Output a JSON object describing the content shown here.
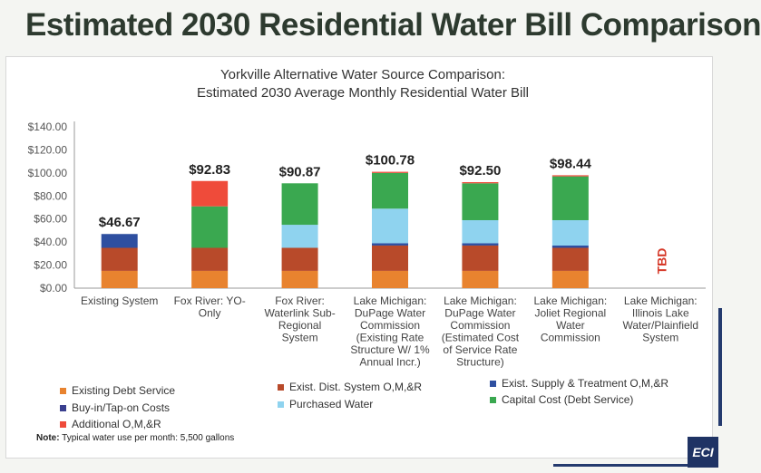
{
  "slide": {
    "title": "Estimated 2030 Residential Water Bill Comparison"
  },
  "chart_data": {
    "type": "bar",
    "stacked": true,
    "title_line1": "Yorkville Alternative Water Source Comparison:",
    "title_line2": "Estimated 2030 Average Monthly Residential Water Bill",
    "ylim": [
      0,
      140
    ],
    "y_ticks": [
      "$0.00",
      "$20.00",
      "$40.00",
      "$60.00",
      "$80.00",
      "$100.00",
      "$120.00",
      "$140.00"
    ],
    "categories": [
      [
        "Existing System"
      ],
      [
        "Fox River: YO-",
        "Only"
      ],
      [
        "Fox River:",
        "Waterlink Sub-",
        "Regional",
        "System"
      ],
      [
        "Lake Michigan:",
        "DuPage Water",
        "Commission",
        "(Existing Rate",
        "Structure W/ 1%",
        "Annual Incr.)"
      ],
      [
        "Lake Michigan:",
        "DuPage Water",
        "Commission",
        "(Estimated Cost",
        "of Service Rate",
        "Structure)"
      ],
      [
        "Lake Michigan:",
        "Joliet Regional",
        "Water",
        "Commission"
      ],
      [
        "Lake Michigan:",
        "Illinois Lake",
        "Water/Plainfield",
        "System"
      ]
    ],
    "totals": [
      "$46.67",
      "$92.83",
      "$90.87",
      "$100.78",
      "$92.50",
      "$98.44",
      ""
    ],
    "tbd_label": "TBD",
    "series": [
      {
        "name": "Existing Debt Service",
        "color": "#e8832f",
        "values": [
          15,
          15,
          15,
          15,
          15,
          15,
          0
        ]
      },
      {
        "name": "Exist. Dist. System O,M,&R",
        "color": "#b84a2a",
        "values": [
          20,
          20,
          20,
          22,
          22,
          20,
          0
        ]
      },
      {
        "name": "Exist. Supply & Treatment O,M,&R",
        "color": "#2e4fa0",
        "values": [
          12,
          0,
          0,
          2,
          2,
          2,
          0
        ]
      },
      {
        "name": "Buy-in/Tap-on Costs",
        "color": "#3a3f8f",
        "values": [
          0,
          0,
          0,
          0,
          0,
          0,
          0
        ]
      },
      {
        "name": "Purchased Water",
        "color": "#8fd3ef",
        "values": [
          0,
          0,
          20,
          30,
          20,
          22,
          0
        ]
      },
      {
        "name": "Capital Cost (Debt Service)",
        "color": "#3aa850",
        "values": [
          0,
          36,
          36,
          31,
          32,
          38,
          0
        ]
      },
      {
        "name": "Additional O,M,&R",
        "color": "#ef4b3a",
        "values": [
          0,
          22,
          0,
          1,
          1,
          1,
          0
        ]
      }
    ]
  },
  "note": {
    "label": "Note:",
    "text": " Typical water use per month: 5,500 gallons"
  },
  "logo": {
    "text": "ECI"
  }
}
